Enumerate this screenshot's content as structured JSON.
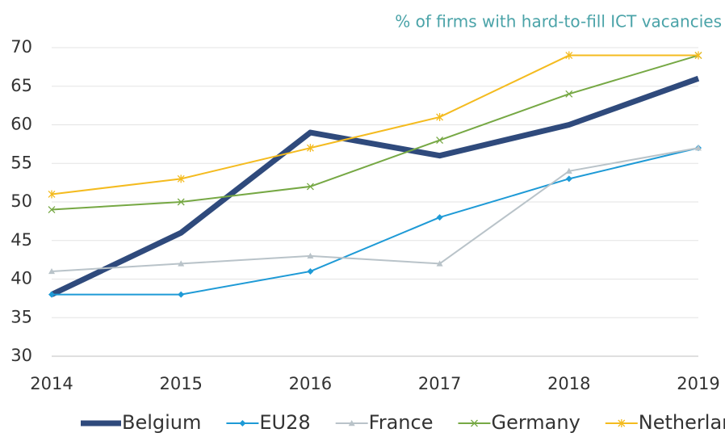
{
  "chart_data": {
    "type": "line",
    "title": "% of firms with hard-to-fill ICT vacancies",
    "x": [
      2014,
      2015,
      2016,
      2017,
      2018,
      2019
    ],
    "xlim": [
      2014,
      2019
    ],
    "xticks": [
      2014,
      2015,
      2016,
      2017,
      2018,
      2019
    ],
    "ylim": [
      30,
      70
    ],
    "yticks": [
      30,
      35,
      40,
      45,
      50,
      55,
      60,
      65,
      70
    ],
    "grid": true,
    "legend": "bottom",
    "series": [
      {
        "name": "Belgium",
        "color": "#2f4a7c",
        "marker": "none",
        "width": 7,
        "values": [
          38,
          46,
          59,
          56,
          60,
          66
        ]
      },
      {
        "name": "EU28",
        "color": "#1e9ad6",
        "marker": "diamond",
        "width": 2,
        "values": [
          38,
          38,
          41,
          48,
          53,
          57
        ]
      },
      {
        "name": "France",
        "color": "#b9c3c9",
        "marker": "triangle",
        "width": 2,
        "values": [
          41,
          42,
          43,
          42,
          54,
          57
        ]
      },
      {
        "name": "Germany",
        "color": "#76a844",
        "marker": "x",
        "width": 2,
        "values": [
          49,
          50,
          52,
          58,
          64,
          69
        ]
      },
      {
        "name": "Netherlands",
        "color": "#f4bb1f",
        "marker": "star",
        "width": 2,
        "values": [
          51,
          53,
          57,
          61,
          69,
          69
        ]
      }
    ]
  }
}
